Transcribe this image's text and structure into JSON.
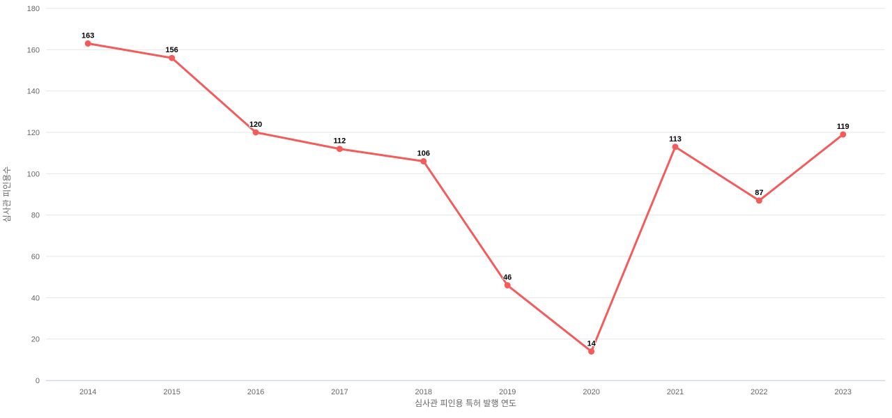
{
  "chart_data": {
    "type": "line",
    "title": "",
    "categories": [
      "2014",
      "2015",
      "2016",
      "2017",
      "2018",
      "2019",
      "2020",
      "2021",
      "2022",
      "2023"
    ],
    "series": [
      {
        "name": "심사관 피인용수",
        "values": [
          163,
          156,
          120,
          112,
          106,
          46,
          14,
          113,
          87,
          119
        ]
      }
    ],
    "xlabel": "심사관 피인용 특허 발행 연도",
    "ylabel": "심사관 피인용수",
    "ylim": [
      0,
      180
    ],
    "yticks": [
      0,
      20,
      40,
      60,
      80,
      100,
      120,
      140,
      160,
      180
    ],
    "grid": true,
    "legend": false,
    "data_labels_shown": true,
    "marker_shape": "circle",
    "colors": {
      "series": "#f45b5b",
      "gridline": "#e6e6e6",
      "axis_line": "#ccd6eb",
      "tick_label": "#666666",
      "axis_title": "#666666",
      "data_label": "#000000",
      "background": "#ffffff"
    }
  }
}
